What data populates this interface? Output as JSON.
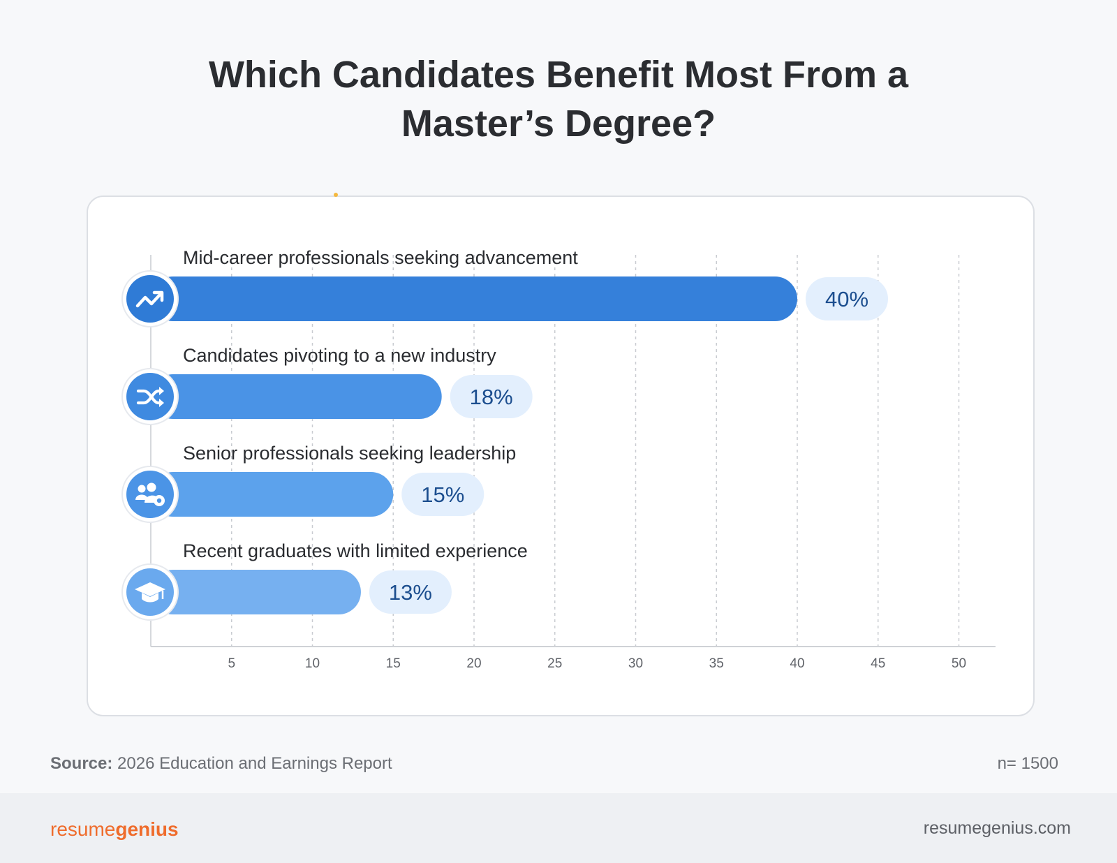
{
  "title": "Which Candidates Benefit Most From a Master’s Degree?",
  "colors": {
    "accent_dark": "#3a82d9",
    "bar_colors": [
      "#3580da",
      "#4a93e6",
      "#5ca2ec",
      "#76b0f0"
    ],
    "pill_bg": "#e3effd",
    "pill_text": "#1c4e8f",
    "icon_circle": [
      "#2f7bd6",
      "#3f8ae0",
      "#4b94e6",
      "#6aa9ee"
    ]
  },
  "chart_data": {
    "type": "bar",
    "orientation": "horizontal",
    "title": "Which Candidates Benefit Most From a Master’s Degree?",
    "categories": [
      "Mid-career professionals seeking advancement",
      "Candidates pivoting to a new industry",
      "Senior professionals seeking leadership",
      "Recent graduates with limited experience"
    ],
    "values": [
      40,
      18,
      15,
      13
    ],
    "value_labels": [
      "40%",
      "18%",
      "15%",
      "13%"
    ],
    "icons": [
      "trending-up-icon",
      "shuffle-icon",
      "team-settings-icon",
      "graduation-cap-icon"
    ],
    "xlim": [
      0,
      52
    ],
    "xticks": [
      5,
      10,
      15,
      20,
      25,
      30,
      35,
      40,
      45,
      50
    ],
    "grid": true,
    "xlabel": "",
    "ylabel": ""
  },
  "footer": {
    "source_label": "Source:",
    "source_text": "2026 Education and Earnings Report",
    "n_text": "n= 1500"
  },
  "brand": {
    "logo_light": "resume",
    "logo_bold": "genius",
    "site": "resumegenius.com"
  }
}
